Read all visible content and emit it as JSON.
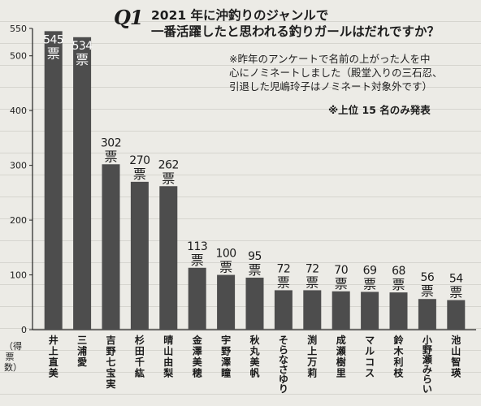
{
  "question": {
    "number": "Q1",
    "text": "2021 年に沖釣りのジャンルで\n一番活躍したと思われる釣りガールはだれですか？"
  },
  "note": "※昨年のアンケートで名前の上がった人を中\n心にノミネートしました（殿堂入りの三石忍、\n引退した児嶋玲子はノミネート対象外です）",
  "note_top": "※上位 15 名のみ発表",
  "chart_data": {
    "type": "bar",
    "ylabel": "（得票数）",
    "ylim": [
      0,
      550
    ],
    "yticks": [
      0,
      100,
      200,
      300,
      400,
      500,
      550
    ],
    "grid": false,
    "bar_color": "#4d4d4d",
    "value_unit": "票",
    "categories": [
      "井上直美",
      "三浦 愛",
      "吉野七宝実",
      "杉田千紘",
      "晴山由梨",
      "金澤美穂",
      "宇野澤瞳",
      "秋丸美帆",
      "そらなさゆり",
      "渕上万莉",
      "成瀬樹里",
      "マルコス",
      "鈴木利枝",
      "小野瀬みらい",
      "池山智瑛"
    ],
    "values": [
      545,
      534,
      302,
      270,
      262,
      113,
      100,
      95,
      72,
      72,
      70,
      69,
      68,
      56,
      54
    ]
  }
}
